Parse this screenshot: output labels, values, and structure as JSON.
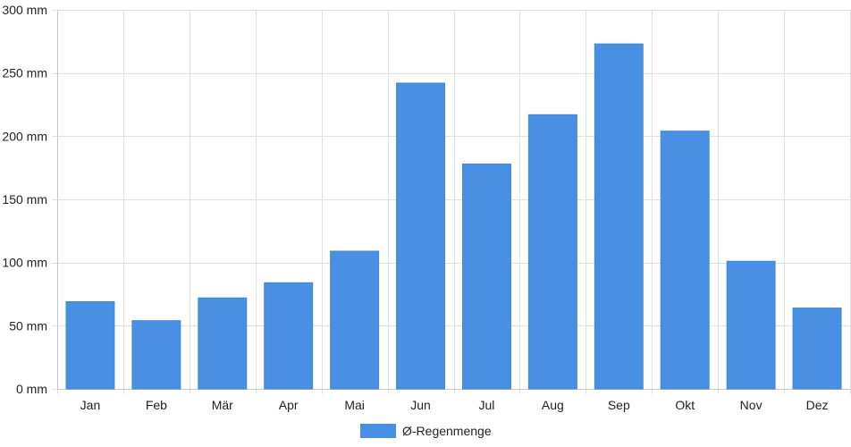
{
  "chart_data": {
    "type": "bar",
    "categories": [
      "Jan",
      "Feb",
      "Mär",
      "Apr",
      "Mai",
      "Jun",
      "Jul",
      "Aug",
      "Sep",
      "Okt",
      "Nov",
      "Dez"
    ],
    "series": [
      {
        "name": "Ø-Regenmenge",
        "values": [
          69,
          54,
          72,
          84,
          109,
          242,
          178,
          217,
          273,
          204,
          101,
          64
        ],
        "color": "#4a90e2"
      }
    ],
    "y_unit": "mm",
    "ylim": [
      0,
      300
    ],
    "y_ticks": [
      0,
      50,
      100,
      150,
      200,
      250,
      300
    ],
    "y_tick_labels": [
      "0 mm",
      "50 mm",
      "100 mm",
      "150 mm",
      "200 mm",
      "250 mm",
      "300 mm"
    ],
    "grid": true,
    "legend_position": "bottom-center"
  }
}
